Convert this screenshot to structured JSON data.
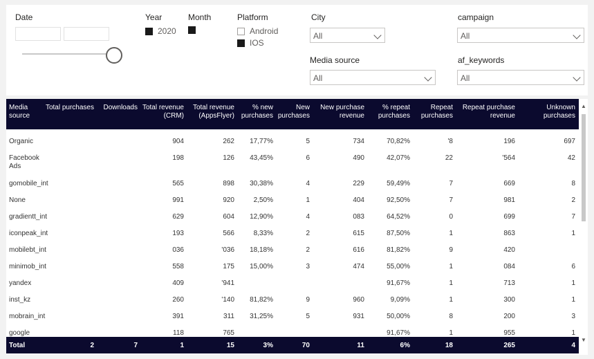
{
  "filters": {
    "date": {
      "label": "Date",
      "from": "",
      "to": ""
    },
    "year": {
      "label": "Year",
      "items": [
        {
          "label": "2020",
          "checked": true
        }
      ]
    },
    "month": {
      "label": "Month",
      "items": [
        {
          "label": "",
          "checked": true
        }
      ]
    },
    "platform": {
      "label": "Platform",
      "items": [
        {
          "label": "Android",
          "checked": false
        },
        {
          "label": "IOS",
          "checked": true
        }
      ]
    },
    "city": {
      "label": "City",
      "value": "All"
    },
    "media_source": {
      "label": "Media source",
      "value": "All"
    },
    "campaign": {
      "label": "campaign",
      "value": "All"
    },
    "af_keywords": {
      "label": "af_keywords",
      "value": "All"
    }
  },
  "table": {
    "columns": [
      "Media source",
      "Total purchases",
      "Downloads",
      "Total revenue (CRM)",
      "Total revenue (AppsFlyer)",
      "% new purchases",
      "New purchases",
      "New purchase revenue",
      "% repeat purchases",
      "Repeat purchases",
      "Repeat purchase revenue",
      "Unknown purchases"
    ],
    "rows": [
      [
        "Organic",
        "",
        "",
        "904",
        "262",
        "17,77%",
        "5",
        "734",
        "70,82%",
        "'8",
        "196",
        "697"
      ],
      [
        "Facebook Ads",
        "",
        "",
        "198",
        "126",
        "43,45%",
        "6",
        "490",
        "42,07%",
        "22",
        "'564",
        "42"
      ],
      [
        "gomobile_int",
        "",
        "",
        "565",
        "898",
        "30,38%",
        "4",
        "229",
        "59,49%",
        "7",
        "669",
        "8"
      ],
      [
        "None",
        "",
        "",
        "991",
        "920",
        "2,50%",
        "1",
        "404",
        "92,50%",
        "7",
        "981",
        "2"
      ],
      [
        "gradientt_int",
        "",
        "",
        "629",
        "604",
        "12,90%",
        "4",
        "083",
        "64,52%",
        "0",
        "699",
        "7"
      ],
      [
        "iconpeak_int",
        "",
        "",
        "193",
        "566",
        "8,33%",
        "2",
        "615",
        "87,50%",
        "1",
        "863",
        "1"
      ],
      [
        "mobilebt_int",
        "",
        "",
        "036",
        "'036",
        "18,18%",
        "2",
        "616",
        "81,82%",
        "9",
        "420",
        ""
      ],
      [
        "minimob_int",
        "",
        "",
        "558",
        "175",
        "15,00%",
        "3",
        "474",
        "55,00%",
        "1",
        "084",
        "6"
      ],
      [
        "yandex",
        "",
        "",
        "409",
        "'941",
        "",
        "",
        "",
        "91,67%",
        "1",
        "713",
        "1"
      ],
      [
        "inst_kz",
        "",
        "",
        "260",
        "'140",
        "81,82%",
        "9",
        "960",
        "9,09%",
        "1",
        "300",
        "1"
      ],
      [
        "mobrain_int",
        "",
        "",
        "391",
        "311",
        "31,25%",
        "5",
        "931",
        "50,00%",
        "8",
        "200",
        "3"
      ],
      [
        "google",
        "",
        "",
        "118",
        "765",
        "",
        "",
        "",
        "91,67%",
        "1",
        "955",
        "1"
      ]
    ],
    "total": [
      "Total",
      "2",
      "7",
      "1",
      "15",
      "3%",
      "70",
      "11",
      "6%",
      "18",
      "265",
      "4"
    ]
  }
}
